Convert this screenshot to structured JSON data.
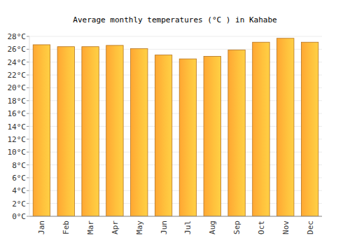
{
  "chart_data": {
    "type": "bar",
    "title": "Average monthly temperatures (°C ) in Kahabe",
    "categories": [
      "Jan",
      "Feb",
      "Mar",
      "Apr",
      "May",
      "Jun",
      "Jul",
      "Aug",
      "Sep",
      "Oct",
      "Nov",
      "Dec"
    ],
    "values": [
      26.7,
      26.4,
      26.4,
      26.6,
      26.1,
      25.1,
      24.5,
      24.9,
      25.9,
      27.1,
      27.7,
      27.1
    ],
    "color": "#ffa733",
    "ylim": [
      0,
      28
    ],
    "yticks": [
      {
        "value": 0,
        "label": "0°C"
      },
      {
        "value": 2,
        "label": "2°C"
      },
      {
        "value": 4,
        "label": "4°C"
      },
      {
        "value": 6,
        "label": "6°C"
      },
      {
        "value": 8,
        "label": "8°C"
      },
      {
        "value": 10,
        "label": "10°C"
      },
      {
        "value": 12,
        "label": "12°C"
      },
      {
        "value": 14,
        "label": "14°C"
      },
      {
        "value": 16,
        "label": "16°C"
      },
      {
        "value": 18,
        "label": "18°C"
      },
      {
        "value": 20,
        "label": "20°C"
      },
      {
        "value": 22,
        "label": "22°C"
      },
      {
        "value": 24,
        "label": "24°C"
      },
      {
        "value": 26,
        "label": "26°C"
      },
      {
        "value": 28,
        "label": "28°C"
      }
    ],
    "grid": true
  }
}
